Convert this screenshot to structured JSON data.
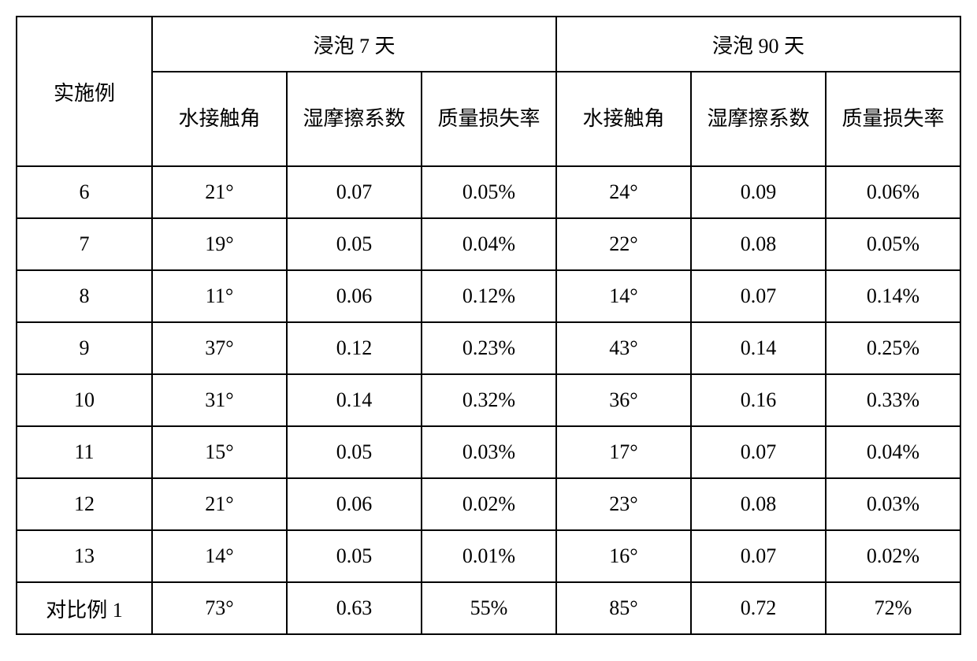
{
  "table": {
    "type": "table",
    "border_color": "#000000",
    "border_width": 2,
    "background_color": "#ffffff",
    "header_fontsize": 26,
    "data_fontsize": 26,
    "header_row1": {
      "col1": "实施例",
      "col2": "浸泡 7 天",
      "col3": "浸泡 90 天"
    },
    "header_row2": {
      "c1": "水接触角",
      "c2": "湿摩擦系数",
      "c3": "质量损失率",
      "c4": "水接触角",
      "c5": "湿摩擦系数",
      "c6": "质量损失率"
    },
    "rows": [
      {
        "example": "6",
        "d1": "21°",
        "d2": "0.07",
        "d3": "0.05%",
        "d4": "24°",
        "d5": "0.09",
        "d6": "0.06%"
      },
      {
        "example": "7",
        "d1": "19°",
        "d2": "0.05",
        "d3": "0.04%",
        "d4": "22°",
        "d5": "0.08",
        "d6": "0.05%"
      },
      {
        "example": "8",
        "d1": "11°",
        "d2": "0.06",
        "d3": "0.12%",
        "d4": "14°",
        "d5": "0.07",
        "d6": "0.14%"
      },
      {
        "example": "9",
        "d1": "37°",
        "d2": "0.12",
        "d3": "0.23%",
        "d4": "43°",
        "d5": "0.14",
        "d6": "0.25%"
      },
      {
        "example": "10",
        "d1": "31°",
        "d2": "0.14",
        "d3": "0.32%",
        "d4": "36°",
        "d5": "0.16",
        "d6": "0.33%"
      },
      {
        "example": "11",
        "d1": "15°",
        "d2": "0.05",
        "d3": "0.03%",
        "d4": "17°",
        "d5": "0.07",
        "d6": "0.04%"
      },
      {
        "example": "12",
        "d1": "21°",
        "d2": "0.06",
        "d3": "0.02%",
        "d4": "23°",
        "d5": "0.08",
        "d6": "0.03%"
      },
      {
        "example": "13",
        "d1": "14°",
        "d2": "0.05",
        "d3": "0.01%",
        "d4": "16°",
        "d5": "0.07",
        "d6": "0.02%"
      },
      {
        "example": "对比例 1",
        "d1": "73°",
        "d2": "0.63",
        "d3": "55%",
        "d4": "85°",
        "d5": "0.72",
        "d6": "72%"
      }
    ]
  }
}
